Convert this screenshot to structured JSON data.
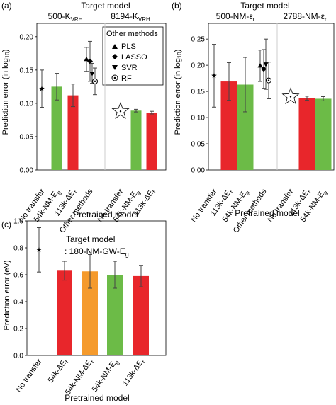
{
  "colors": {
    "red": "#e8262b",
    "green": "#6cbb47",
    "orange": "#f59a2c",
    "errorbar": "#444444",
    "frame": "#000000",
    "divider": "#cccccc"
  },
  "panels": [
    {
      "id": "a",
      "tag": "(a)",
      "header": "Target model",
      "xlabel": "Pretrained model"
    },
    {
      "id": "b",
      "tag": "(b)",
      "header": "Target model",
      "xlabel": "Pretrained model"
    },
    {
      "id": "c",
      "tag": "(c)",
      "header": "Target model",
      "header2": ": 180-NM-GW-E",
      "header2_sub": "g",
      "xlabel": "Pretrained model"
    }
  ],
  "legend": {
    "title": "Other methods",
    "items": [
      {
        "label": "PLS",
        "marker": "triangle-up"
      },
      {
        "label": "LASSO",
        "marker": "diamond"
      },
      {
        "label": "SVR",
        "marker": "triangle-down"
      },
      {
        "label": "RF",
        "marker": "circle-dot"
      }
    ]
  },
  "chart_data": [
    {
      "panel": "a",
      "type": "bar",
      "ylabel": "Prediction error (in log10)",
      "ylim": [
        0.0,
        0.22
      ],
      "yticks": [
        "0.00",
        "0.05",
        "0.10",
        "0.15",
        "0.20"
      ],
      "groups": [
        {
          "title": "500-K",
          "title_sub": "VRH",
          "categories": [
            "No transfer",
            "54k-NM-Eg",
            "113k-ΔEf",
            "Other methods"
          ],
          "no_transfer": {
            "value": 0.122,
            "err": 0.028,
            "marker": "star"
          },
          "bars": [
            {
              "category": "54k-NM-Eg",
              "value": 0.125,
              "err": 0.02,
              "color": "green"
            },
            {
              "category": "113k-ΔEf",
              "value": 0.112,
              "err": 0.017,
              "color": "red"
            }
          ],
          "other_methods": [
            {
              "method": "PLS",
              "value": 0.166,
              "err": 0.018
            },
            {
              "method": "LASSO",
              "value": 0.163,
              "err": 0.03
            },
            {
              "method": "SVR",
              "value": 0.145,
              "err": 0.015
            },
            {
              "method": "RF",
              "value": 0.133,
              "err": 0.02
            }
          ]
        },
        {
          "title": "8194-K",
          "title_sub": "VRH",
          "categories": [
            "No transfer",
            "54k-NM-Eg",
            "113k-ΔEf"
          ],
          "no_transfer": {
            "value": 0.088,
            "err": 0.0,
            "marker": "star-large"
          },
          "bars": [
            {
              "category": "54k-NM-Eg",
              "value": 0.089,
              "err": 0.002,
              "color": "green"
            },
            {
              "category": "113k-ΔEf",
              "value": 0.086,
              "err": 0.002,
              "color": "red"
            }
          ]
        }
      ]
    },
    {
      "panel": "b",
      "type": "bar",
      "ylabel": "Prediction error (in log10)",
      "ylim": [
        0.0,
        0.28
      ],
      "yticks": [
        "0.00",
        "0.05",
        "0.10",
        "0.15",
        "0.20",
        "0.25"
      ],
      "groups": [
        {
          "title": "500-NM-ε",
          "title_sub": "r",
          "categories": [
            "No transfer",
            "113k-ΔEf",
            "54k-NM-Eg",
            "Other methods"
          ],
          "no_transfer": {
            "value": 0.18,
            "err": 0.06,
            "marker": "star"
          },
          "bars": [
            {
              "category": "113k-ΔEf",
              "value": 0.169,
              "err": 0.036,
              "color": "red"
            },
            {
              "category": "54k-NM-Eg",
              "value": 0.163,
              "err": 0.052,
              "color": "green"
            }
          ],
          "other_methods": [
            {
              "method": "PLS",
              "value": 0.199,
              "err": 0.03
            },
            {
              "method": "LASSO",
              "value": 0.193,
              "err": 0.037
            },
            {
              "method": "SVR",
              "value": 0.202,
              "err": 0.048
            },
            {
              "method": "RF",
              "value": 0.171,
              "err": 0.035
            }
          ]
        },
        {
          "title": "2788-NM-ε",
          "title_sub": "r",
          "categories": [
            "No transfer",
            "113k-ΔEf",
            "54k-NM-Eg"
          ],
          "no_transfer": {
            "value": 0.14,
            "err": 0.0,
            "marker": "star-large"
          },
          "bars": [
            {
              "category": "113k-ΔEf",
              "value": 0.137,
              "err": 0.004,
              "color": "red"
            },
            {
              "category": "54k-NM-Eg",
              "value": 0.136,
              "err": 0.004,
              "color": "green"
            }
          ]
        }
      ]
    },
    {
      "panel": "c",
      "type": "bar",
      "ylabel": "Prediction error (eV)",
      "ylim": [
        0.0,
        1.0
      ],
      "yticks": [
        "0.0",
        "0.2",
        "0.4",
        "0.6",
        "0.8",
        "1.0"
      ],
      "categories": [
        "No transfer",
        "54k-ΔEf",
        "54k-NM-ΔEf",
        "54k-NM-Eg",
        "113k-ΔEf"
      ],
      "no_transfer": {
        "value": 0.785,
        "err": 0.165,
        "marker": "star"
      },
      "bars": [
        {
          "category": "54k-ΔEf",
          "value": 0.63,
          "err": 0.07,
          "color": "red"
        },
        {
          "category": "54k-NM-ΔEf",
          "value": 0.625,
          "err": 0.125,
          "color": "orange"
        },
        {
          "category": "54k-NM-Eg",
          "value": 0.6,
          "err": 0.1,
          "color": "green"
        },
        {
          "category": "113k-ΔEf",
          "value": 0.59,
          "err": 0.08,
          "color": "red"
        }
      ]
    }
  ]
}
